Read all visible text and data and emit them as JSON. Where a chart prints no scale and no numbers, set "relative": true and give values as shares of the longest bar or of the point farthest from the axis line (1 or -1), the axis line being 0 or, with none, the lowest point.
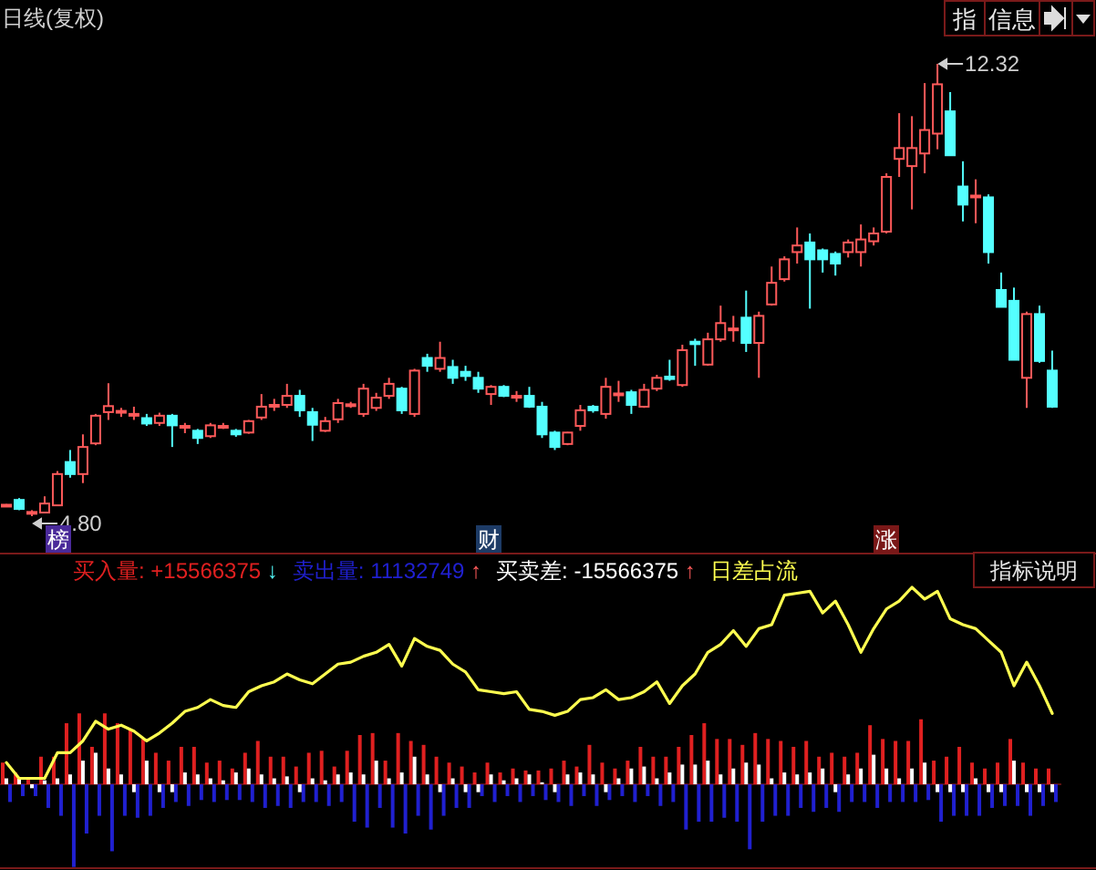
{
  "chart_data": [
    {
      "type": "candlestick",
      "title": "日线(复权)",
      "categories": [
        null,
        null,
        null,
        null,
        null,
        null,
        null,
        null,
        null,
        null,
        null,
        null,
        null,
        null,
        null,
        null,
        null,
        null,
        null,
        null,
        null,
        null,
        null,
        null,
        null,
        null,
        null,
        null,
        null,
        null,
        null,
        null,
        null,
        null,
        null,
        null,
        null,
        null,
        null,
        null,
        null,
        null,
        null,
        null,
        null,
        null,
        null,
        null,
        null,
        null,
        null,
        null,
        null,
        null,
        null,
        null,
        null,
        null,
        null,
        null,
        null,
        null,
        null,
        null,
        null,
        null,
        null,
        null,
        null,
        null,
        null,
        null,
        null,
        null,
        null,
        null,
        null,
        null,
        null,
        null,
        null,
        null,
        null
      ],
      "ohlc": [
        [
          4.97,
          5.0,
          4.95,
          4.99
        ],
        [
          5.07,
          5.1,
          4.9,
          4.92
        ],
        [
          4.85,
          4.9,
          4.8,
          4.87
        ],
        [
          4.86,
          5.13,
          4.85,
          5.01
        ],
        [
          4.98,
          5.55,
          4.97,
          5.5
        ],
        [
          5.7,
          5.9,
          5.44,
          5.5
        ],
        [
          5.5,
          6.16,
          5.35,
          5.95
        ],
        [
          6.01,
          6.5,
          5.98,
          6.47
        ],
        [
          6.53,
          7.01,
          6.4,
          6.63
        ],
        [
          6.52,
          6.6,
          6.45,
          6.55
        ],
        [
          6.47,
          6.62,
          6.4,
          6.5
        ],
        [
          6.43,
          6.5,
          6.3,
          6.34
        ],
        [
          6.35,
          6.52,
          6.3,
          6.47
        ],
        [
          6.47,
          6.5,
          5.95,
          6.31
        ],
        [
          6.27,
          6.35,
          6.18,
          6.3
        ],
        [
          6.22,
          6.25,
          6.0,
          6.1
        ],
        [
          6.13,
          6.35,
          6.1,
          6.31
        ],
        [
          6.28,
          6.35,
          6.25,
          6.3
        ],
        [
          6.22,
          6.25,
          6.12,
          6.16
        ],
        [
          6.19,
          6.4,
          6.17,
          6.38
        ],
        [
          6.44,
          6.83,
          6.4,
          6.62
        ],
        [
          6.62,
          6.75,
          6.55,
          6.65
        ],
        [
          6.65,
          7.0,
          6.6,
          6.8
        ],
        [
          6.8,
          6.9,
          6.45,
          6.56
        ],
        [
          6.53,
          6.6,
          6.05,
          6.32
        ],
        [
          6.22,
          6.45,
          6.2,
          6.38
        ],
        [
          6.41,
          6.75,
          6.35,
          6.68
        ],
        [
          6.64,
          6.7,
          6.6,
          6.66
        ],
        [
          6.5,
          7.0,
          6.45,
          6.92
        ],
        [
          6.6,
          6.85,
          6.55,
          6.77
        ],
        [
          6.8,
          7.1,
          6.75,
          7.0
        ],
        [
          6.92,
          6.95,
          6.5,
          6.56
        ],
        [
          6.5,
          7.25,
          6.45,
          7.22
        ],
        [
          7.43,
          7.5,
          7.2,
          7.3
        ],
        [
          7.25,
          7.7,
          7.2,
          7.43
        ],
        [
          7.28,
          7.4,
          7.0,
          7.1
        ],
        [
          7.2,
          7.3,
          7.05,
          7.13
        ],
        [
          7.1,
          7.2,
          6.85,
          6.92
        ],
        [
          6.83,
          6.98,
          6.65,
          6.95
        ],
        [
          6.95,
          6.98,
          6.78,
          6.8
        ],
        [
          6.78,
          6.88,
          6.7,
          6.8
        ],
        [
          6.8,
          6.95,
          6.6,
          6.62
        ],
        [
          6.62,
          6.7,
          6.1,
          6.16
        ],
        [
          6.19,
          6.22,
          5.9,
          5.95
        ],
        [
          6.0,
          6.2,
          5.98,
          6.19
        ],
        [
          6.3,
          6.65,
          6.22,
          6.56
        ],
        [
          6.62,
          6.65,
          6.52,
          6.56
        ],
        [
          6.5,
          7.1,
          6.42,
          6.95
        ],
        [
          6.82,
          7.05,
          6.7,
          6.84
        ],
        [
          6.86,
          6.9,
          6.5,
          6.65
        ],
        [
          6.62,
          7.0,
          6.6,
          6.9
        ],
        [
          6.92,
          7.15,
          6.88,
          7.1
        ],
        [
          7.12,
          7.4,
          7.05,
          7.08
        ],
        [
          6.98,
          7.65,
          6.95,
          7.56
        ],
        [
          7.7,
          7.75,
          7.3,
          7.66
        ],
        [
          7.32,
          7.85,
          7.3,
          7.74
        ],
        [
          7.74,
          8.3,
          7.7,
          8.01
        ],
        [
          7.9,
          8.13,
          7.7,
          7.92
        ],
        [
          8.1,
          8.55,
          7.53,
          7.68
        ],
        [
          7.68,
          8.2,
          7.1,
          8.13
        ],
        [
          8.32,
          8.95,
          8.3,
          8.68
        ],
        [
          8.74,
          9.12,
          8.7,
          9.07
        ],
        [
          9.19,
          9.6,
          9.0,
          9.3
        ],
        [
          9.35,
          9.5,
          8.25,
          9.07
        ],
        [
          9.22,
          9.25,
          8.85,
          9.07
        ],
        [
          9.16,
          9.2,
          8.8,
          9.0
        ],
        [
          9.19,
          9.4,
          9.1,
          9.35
        ],
        [
          9.19,
          9.65,
          8.95,
          9.4
        ],
        [
          9.37,
          9.6,
          9.3,
          9.5
        ],
        [
          9.53,
          10.5,
          9.5,
          10.44
        ],
        [
          10.74,
          11.5,
          10.44,
          10.92
        ],
        [
          10.62,
          11.45,
          9.9,
          10.92
        ],
        [
          10.83,
          12.0,
          10.5,
          11.22
        ],
        [
          11.16,
          12.32,
          10.9,
          11.98
        ],
        [
          11.53,
          11.85,
          10.8,
          10.8
        ],
        [
          10.28,
          10.7,
          9.7,
          9.98
        ],
        [
          10.1,
          10.4,
          9.67,
          10.13
        ],
        [
          10.1,
          10.15,
          9.0,
          9.19
        ],
        [
          8.56,
          8.85,
          8.28,
          8.28
        ],
        [
          8.38,
          8.6,
          7.4,
          7.4
        ],
        [
          7.1,
          8.2,
          6.6,
          8.16
        ],
        [
          8.16,
          8.3,
          7.35,
          7.38
        ],
        [
          7.22,
          7.55,
          6.6,
          6.62
        ]
      ],
      "annotations": [
        "4.80",
        "12.32",
        "榜",
        "财",
        "涨",
        "指",
        "信息"
      ]
    },
    {
      "type": "bar",
      "relative": true,
      "categories": [
        null,
        null,
        null,
        null,
        null,
        null,
        null,
        null,
        null,
        null,
        null,
        null,
        null,
        null,
        null,
        null,
        null,
        null,
        null,
        null,
        null,
        null,
        null,
        null,
        null,
        null,
        null,
        null,
        null,
        null,
        null,
        null,
        null,
        null,
        null,
        null,
        null,
        null,
        null,
        null,
        null,
        null,
        null,
        null,
        null,
        null,
        null,
        null,
        null,
        null,
        null,
        null,
        null,
        null,
        null,
        null,
        null,
        null,
        null,
        null,
        null,
        null,
        null,
        null,
        null,
        null,
        null,
        null,
        null,
        null,
        null,
        null,
        null,
        null,
        null,
        null,
        null,
        null,
        null,
        null,
        null,
        null,
        null
      ],
      "series": [
        {
          "name": "买入量: +15566375 ↓",
          "type": "bar",
          "color": "#e02020",
          "values": [
            0.11,
            0.06,
            0.03,
            0.14,
            0.14,
            0.31,
            0.36,
            0.19,
            0.36,
            0.31,
            0.28,
            0.23,
            0.16,
            0.12,
            0.19,
            0.19,
            0.11,
            0.12,
            0.08,
            0.16,
            0.22,
            0.14,
            0.14,
            0.09,
            0.16,
            0.17,
            0.09,
            0.17,
            0.25,
            0.26,
            0.12,
            0.26,
            0.22,
            0.2,
            0.14,
            0.11,
            0.09,
            0.06,
            0.11,
            0.06,
            0.08,
            0.07,
            0.07,
            0.08,
            0.12,
            0.09,
            0.2,
            0.11,
            0.08,
            0.12,
            0.19,
            0.14,
            0.14,
            0.19,
            0.25,
            0.31,
            0.23,
            0.23,
            0.2,
            0.26,
            0.23,
            0.22,
            0.19,
            0.22,
            0.14,
            0.16,
            0.14,
            0.16,
            0.3,
            0.23,
            0.22,
            0.22,
            0.33,
            0.12,
            0.14,
            0.19,
            0.11,
            0.08,
            0.11,
            0.23,
            0.11,
            0.08,
            0.08
          ]
        },
        {
          "name": "卖出量: 11132749 ↑",
          "type": "bar",
          "color": "#2020d0",
          "values": [
            -0.09,
            -0.06,
            -0.06,
            -0.12,
            -0.16,
            -0.42,
            -0.25,
            -0.16,
            -0.34,
            -0.16,
            -0.17,
            -0.16,
            -0.12,
            -0.09,
            -0.11,
            -0.08,
            -0.09,
            -0.08,
            -0.08,
            -0.09,
            -0.12,
            -0.11,
            -0.12,
            -0.09,
            -0.09,
            -0.11,
            -0.09,
            -0.19,
            -0.22,
            -0.12,
            -0.22,
            -0.25,
            -0.16,
            -0.23,
            -0.16,
            -0.12,
            -0.12,
            -0.06,
            -0.09,
            -0.06,
            -0.09,
            -0.06,
            -0.08,
            -0.09,
            -0.11,
            -0.06,
            -0.11,
            -0.08,
            -0.06,
            -0.09,
            -0.06,
            -0.11,
            -0.09,
            -0.23,
            -0.19,
            -0.19,
            -0.17,
            -0.19,
            -0.33,
            -0.19,
            -0.16,
            -0.16,
            -0.12,
            -0.14,
            -0.12,
            -0.14,
            -0.09,
            -0.09,
            -0.12,
            -0.09,
            -0.09,
            -0.09,
            -0.08,
            -0.19,
            -0.16,
            -0.16,
            -0.16,
            -0.12,
            -0.11,
            -0.11,
            -0.16,
            -0.11,
            -0.09
          ]
        },
        {
          "name": "买卖差: -15566375 ↑",
          "type": "bar",
          "color": "#ffffff",
          "values": [
            0.03,
            0.03,
            -0.02,
            0.02,
            0.03,
            0.05,
            0.12,
            0.16,
            0.08,
            0.05,
            -0.04,
            0.12,
            -0.04,
            -0.04,
            0.06,
            0.05,
            0.03,
            0.02,
            0.06,
            0.08,
            0.05,
            0.03,
            0.04,
            -0.04,
            0.03,
            0.02,
            0.05,
            0.06,
            0.05,
            0.12,
            0.03,
            0.06,
            0.14,
            0.05,
            -0.04,
            0.03,
            -0.04,
            -0.04,
            0.05,
            0.02,
            0.03,
            0.05,
            0.01,
            -0.04,
            0.05,
            0.06,
            0.05,
            -0.04,
            0.03,
            0.08,
            0.09,
            0.03,
            0.06,
            0.1,
            0.1,
            0.12,
            0.05,
            0.08,
            0.11,
            0.1,
            0.03,
            0.06,
            0.05,
            0.06,
            0.08,
            -0.04,
            0.05,
            0.08,
            0.15,
            0.08,
            0.03,
            0.08,
            0.11,
            -0.04,
            -0.04,
            -0.04,
            0.03,
            -0.04,
            -0.04,
            0.12,
            -0.04,
            -0.04,
            -0.04
          ]
        },
        {
          "name": "日差占流",
          "type": "line",
          "color": "#ffff50",
          "values": [
            0.11,
            0.03,
            0.03,
            0.03,
            0.16,
            0.16,
            0.22,
            0.32,
            0.28,
            0.3,
            0.27,
            0.22,
            0.26,
            0.31,
            0.37,
            0.39,
            0.43,
            0.4,
            0.39,
            0.47,
            0.5,
            0.52,
            0.56,
            0.53,
            0.51,
            0.56,
            0.61,
            0.62,
            0.65,
            0.67,
            0.71,
            0.6,
            0.74,
            0.7,
            0.68,
            0.61,
            0.57,
            0.48,
            0.47,
            0.46,
            0.47,
            0.38,
            0.37,
            0.35,
            0.37,
            0.43,
            0.44,
            0.48,
            0.43,
            0.44,
            0.47,
            0.52,
            0.41,
            0.5,
            0.56,
            0.67,
            0.71,
            0.78,
            0.7,
            0.79,
            0.81,
            0.96,
            0.97,
            0.98,
            0.87,
            0.93,
            0.81,
            0.67,
            0.79,
            0.89,
            0.93,
            1.0,
            0.94,
            0.98,
            0.84,
            0.81,
            0.79,
            0.73,
            0.67,
            0.5,
            0.62,
            0.5,
            0.36
          ]
        }
      ],
      "annotations": [
        "指标说明"
      ]
    }
  ]
}
